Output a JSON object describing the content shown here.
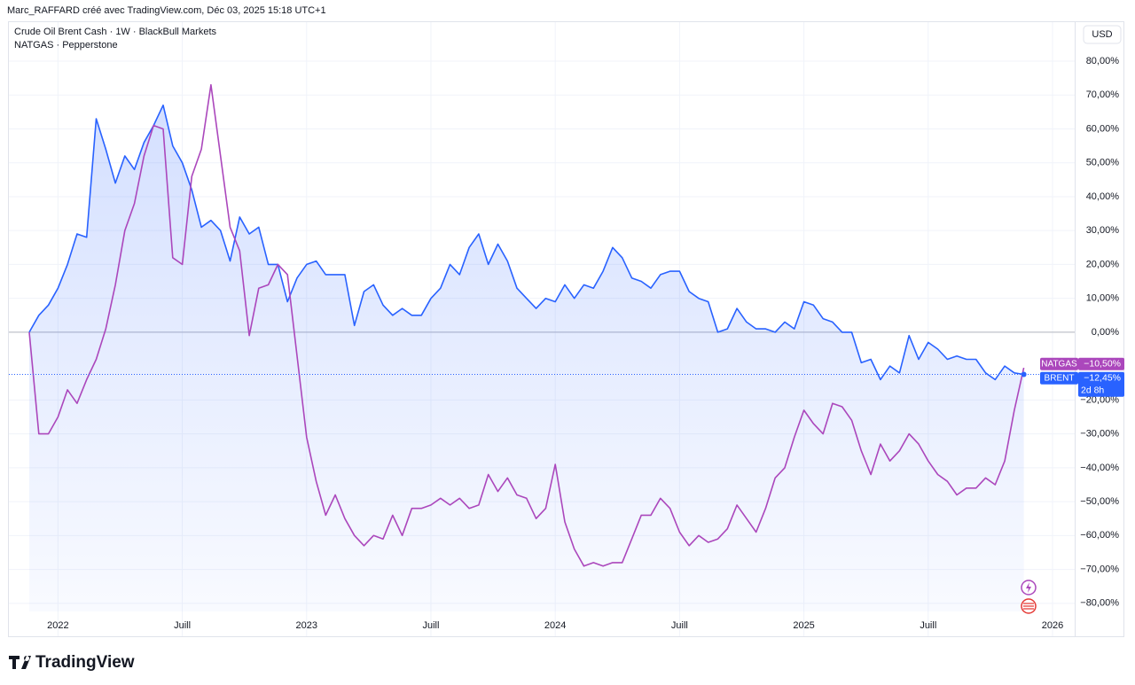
{
  "header": {
    "attribution": "Marc_RAFFARD créé avec TradingView.com, Déc 03, 2025 15:18 UTC+1",
    "currency": "USD"
  },
  "footer": {
    "brand": "TradingView"
  },
  "chart_data": {
    "type": "line",
    "categories": [
      null,
      null,
      null,
      "2022",
      null,
      null,
      null,
      null,
      null,
      null,
      null,
      null,
      null,
      null,
      null,
      null,
      "Juill",
      null,
      null,
      null,
      null,
      null,
      null,
      null,
      null,
      null,
      null,
      null,
      null,
      "2023",
      null,
      null,
      null,
      null,
      null,
      null,
      null,
      null,
      null,
      null,
      null,
      null,
      "Juill",
      null,
      null,
      null,
      null,
      null,
      null,
      null,
      null,
      null,
      null,
      null,
      null,
      "2024",
      null,
      null,
      null,
      null,
      null,
      null,
      null,
      null,
      null,
      null,
      null,
      null,
      "Juill",
      null,
      null,
      null,
      null,
      null,
      null,
      null,
      null,
      null,
      null,
      null,
      null,
      "2025",
      null,
      null,
      null,
      null,
      null,
      null,
      null,
      null,
      null,
      null,
      null,
      null,
      "Juill",
      null,
      null,
      null,
      null,
      null,
      null,
      null,
      null,
      null,
      null,
      null,
      null,
      "2026"
    ],
    "series": [
      {
        "name": "Crude Oil Brent Cash · 1W · BlackBull Markets",
        "short_name": "BRENT",
        "color": "#2962ff",
        "area": true,
        "countdown": "2d 8h",
        "values": [
          0,
          5,
          8,
          13,
          20,
          29,
          28,
          63,
          54,
          44,
          52,
          48,
          56,
          61,
          67,
          55,
          50,
          42,
          31,
          33,
          30,
          21,
          34,
          29,
          31,
          20,
          20,
          9,
          16,
          20,
          21,
          17,
          17,
          17,
          2,
          12,
          14,
          8,
          5,
          7,
          5,
          5,
          10,
          13,
          20,
          17,
          25,
          29,
          20,
          26,
          21,
          13,
          10,
          7,
          10,
          9,
          14,
          10,
          14,
          13,
          18,
          25,
          22,
          16,
          15,
          13,
          17,
          18,
          18,
          12,
          10,
          9,
          0,
          1,
          7,
          3,
          1,
          1,
          0,
          3,
          1,
          9,
          8,
          4,
          3,
          0,
          0,
          -9,
          -8,
          -14,
          -10,
          -12,
          -1,
          -8,
          -3,
          -5,
          -8,
          -7,
          -8,
          -8,
          -12,
          -14,
          -10,
          -12,
          -12.45,
          null,
          null,
          null
        ],
        "value_labels": [
          null,
          null,
          null,
          null,
          null,
          null,
          null,
          null,
          null,
          null,
          null,
          null,
          null,
          null,
          null,
          null,
          null,
          null,
          null,
          null,
          null,
          null,
          null,
          null,
          null,
          null,
          null,
          null,
          null,
          null,
          null,
          null,
          null,
          null,
          null,
          null,
          null,
          null,
          null,
          null,
          null,
          null,
          null,
          null,
          null,
          null,
          null,
          null,
          null,
          null,
          null,
          null,
          null,
          null,
          null,
          null,
          null,
          null,
          null,
          null,
          null,
          null,
          null,
          null,
          null,
          null,
          null,
          null,
          null,
          null,
          null,
          null,
          null,
          null,
          null,
          null,
          null,
          null,
          null,
          null,
          null,
          null,
          null,
          null,
          null,
          null,
          null,
          null,
          null,
          null,
          null,
          null,
          null,
          null,
          null,
          null,
          null,
          null,
          null,
          null,
          null,
          null,
          null,
          null,
          "−12,45%",
          null,
          null,
          null
        ]
      },
      {
        "name": "NATGAS · Pepperstone",
        "short_name": "NATGAS",
        "color": "#ab47bc",
        "area": false,
        "values": [
          0,
          -30,
          -30,
          -25,
          -17,
          -21,
          -14,
          -8,
          1,
          14,
          30,
          38,
          52,
          61,
          60,
          22,
          20,
          46,
          54,
          73,
          52,
          31,
          24,
          -1,
          13,
          14,
          20,
          17,
          -7,
          -31,
          -44,
          -54,
          -48,
          -55,
          -60,
          -63,
          -60,
          -61,
          -54,
          -60,
          -52,
          -52,
          -51,
          -49,
          -51,
          -49,
          -52,
          -51,
          -42,
          -47,
          -43,
          -48,
          -49,
          -55,
          -52,
          -39,
          -56,
          -64,
          -69,
          -68,
          -69,
          -68,
          -68,
          -61,
          -54,
          -54,
          -49,
          -52,
          -59,
          -63,
          -60,
          -62,
          -61,
          -58,
          -51,
          -55,
          -59,
          -52,
          -43,
          -40,
          -31,
          -23,
          -27,
          -30,
          -21,
          -22,
          -26,
          -35,
          -42,
          -33,
          -38,
          -35,
          -30,
          -33,
          -38,
          -42,
          -44,
          -48,
          -46,
          -46,
          -43,
          -45,
          -38,
          -23,
          -10.5,
          null,
          null,
          null
        ],
        "value_labels": [
          null,
          null,
          null,
          null,
          null,
          null,
          null,
          null,
          null,
          null,
          null,
          null,
          null,
          null,
          null,
          null,
          null,
          null,
          null,
          null,
          null,
          null,
          null,
          null,
          null,
          null,
          null,
          null,
          null,
          null,
          null,
          null,
          null,
          null,
          null,
          null,
          null,
          null,
          null,
          null,
          null,
          null,
          null,
          null,
          null,
          null,
          null,
          null,
          null,
          null,
          null,
          null,
          null,
          null,
          null,
          null,
          null,
          null,
          null,
          null,
          null,
          null,
          null,
          null,
          null,
          null,
          null,
          null,
          null,
          null,
          null,
          null,
          null,
          null,
          null,
          null,
          null,
          null,
          null,
          null,
          null,
          null,
          null,
          null,
          null,
          null,
          null,
          null,
          null,
          null,
          null,
          null,
          null,
          null,
          null,
          null,
          null,
          null,
          null,
          null,
          null,
          null,
          null,
          null,
          "−10,50%",
          null,
          null,
          null
        ]
      }
    ],
    "ylim": [
      -82.4,
      91.5
    ],
    "yticks": [
      {
        "value": 80,
        "label": "80,00%"
      },
      {
        "value": 70,
        "label": "70,00%"
      },
      {
        "value": 60,
        "label": "60,00%"
      },
      {
        "value": 50,
        "label": "50,00%"
      },
      {
        "value": 40,
        "label": "40,00%"
      },
      {
        "value": 30,
        "label": "30,00%"
      },
      {
        "value": 20,
        "label": "20,00%"
      },
      {
        "value": 10,
        "label": "10,00%"
      },
      {
        "value": 0,
        "label": "0,00%"
      },
      {
        "value": -20,
        "label": "−20,00%"
      },
      {
        "value": -30,
        "label": "−30,00%"
      },
      {
        "value": -40,
        "label": "−40,00%"
      },
      {
        "value": -50,
        "label": "−50,00%"
      },
      {
        "value": -60,
        "label": "−60,00%"
      },
      {
        "value": -70,
        "label": "−70,00%"
      },
      {
        "value": -80,
        "label": "−80,00%"
      }
    ],
    "grid": true
  }
}
